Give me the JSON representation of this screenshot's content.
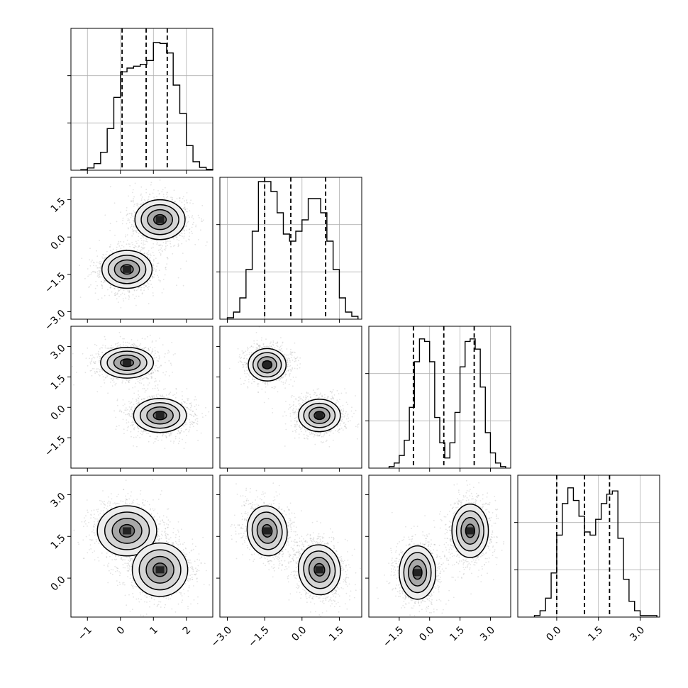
{
  "chart_data": {
    "type": "corner",
    "n_params": 4,
    "grid": true,
    "axes": [
      {
        "range": [
          -1.5,
          2.8
        ],
        "ticks": [
          -1,
          0,
          1,
          2
        ],
        "tick_labels": [
          "−1",
          "0",
          "1",
          "2"
        ]
      },
      {
        "range": [
          -3.3,
          2.4
        ],
        "ticks": [
          -3.0,
          -1.5,
          0.0,
          1.5
        ],
        "tick_labels": [
          "−3.0",
          "−1.5",
          "0.0",
          "1.5"
        ]
      },
      {
        "range": [
          -3.0,
          4.0
        ],
        "ticks": [
          -1.5,
          0.0,
          1.5,
          3.0
        ],
        "tick_labels": [
          "−1.5",
          "0.0",
          "1.5",
          "3.0"
        ]
      },
      {
        "range": [
          -1.4,
          3.7
        ],
        "ticks": [
          0.0,
          1.5,
          3.0
        ],
        "tick_labels": [
          "0.0",
          "1.5",
          "3.0"
        ]
      }
    ],
    "histograms": [
      {
        "param": 0,
        "edges": [
          -1.2,
          -1.0,
          -0.8,
          -0.6,
          -0.4,
          -0.2,
          0.0,
          0.2,
          0.4,
          0.6,
          0.8,
          1.0,
          1.2,
          1.4,
          1.6,
          1.8,
          2.0,
          2.2,
          2.4,
          2.6,
          2.8
        ],
        "counts": [
          0.3,
          1.2,
          3.5,
          9.5,
          22,
          38.5,
          52,
          54,
          55,
          56,
          58,
          67.5,
          67,
          62,
          45,
          30,
          13,
          4.5,
          1.5,
          0.5
        ],
        "ylim": [
          0,
          75
        ],
        "quantiles": [
          0.05,
          0.78,
          1.42
        ]
      },
      {
        "param": 1,
        "edges": [
          -3.0,
          -2.75,
          -2.5,
          -2.25,
          -2.0,
          -1.75,
          -1.5,
          -1.25,
          -1.0,
          -0.75,
          -0.5,
          -0.25,
          0.0,
          0.25,
          0.5,
          0.75,
          1.0,
          1.25,
          1.5,
          1.75,
          2.0,
          2.25
        ],
        "counts": [
          1,
          5,
          15,
          35,
          62,
          97,
          97,
          90,
          75,
          60,
          55,
          62,
          70,
          85,
          85,
          75,
          55,
          35,
          15,
          5,
          2
        ],
        "ylim": [
          0,
          100
        ],
        "quantiles": [
          -1.5,
          -0.45,
          0.95
        ]
      },
      {
        "param": 2,
        "edges": [
          -2.0,
          -1.75,
          -1.5,
          -1.25,
          -1.0,
          -0.75,
          -0.5,
          -0.25,
          0.0,
          0.25,
          0.5,
          0.75,
          1.0,
          1.25,
          1.5,
          1.75,
          2.0,
          2.25,
          2.5,
          2.75,
          3.0,
          3.25,
          3.5,
          3.75
        ],
        "counts": [
          0.3,
          1,
          2.5,
          5.5,
          12,
          21,
          25.5,
          25,
          21,
          10,
          5,
          2,
          5,
          11,
          20,
          25,
          25.5,
          23.5,
          16,
          7,
          3,
          1,
          0.3
        ],
        "ylim": [
          0,
          28
        ],
        "quantiles": [
          -0.8,
          0.7,
          2.2
        ]
      },
      {
        "param": 3,
        "edges": [
          -0.8,
          -0.6,
          -0.4,
          -0.2,
          0.0,
          0.2,
          0.4,
          0.6,
          0.8,
          1.0,
          1.2,
          1.4,
          1.6,
          1.8,
          2.0,
          2.2,
          2.4,
          2.6,
          2.8,
          3.0,
          3.2,
          3.4,
          3.6
        ],
        "counts": [
          0.5,
          2,
          6,
          14,
          26,
          36,
          41,
          37,
          32,
          27,
          26,
          31,
          36,
          39,
          40,
          25,
          12,
          5,
          2,
          0.5,
          0.5,
          0.5
        ],
        "ylim": [
          0,
          45
        ],
        "quantiles": [
          0.0,
          1.0,
          1.9
        ]
      }
    ],
    "pairs": [
      {
        "x": 0,
        "y": 1,
        "modes": [
          {
            "cx": 1.2,
            "cy": 0.7,
            "sx": 0.38,
            "sy": 0.4,
            "rho": 0
          },
          {
            "cx": 0.2,
            "cy": -1.3,
            "sx": 0.38,
            "sy": 0.38,
            "rho": 0
          }
        ]
      },
      {
        "x": 0,
        "y": 2,
        "modes": [
          {
            "cx": 0.2,
            "cy": 2.2,
            "sx": 0.4,
            "sy": 0.38,
            "rho": 0
          },
          {
            "cx": 1.2,
            "cy": -0.4,
            "sx": 0.4,
            "sy": 0.42,
            "rho": 0
          }
        ]
      },
      {
        "x": 0,
        "y": 3,
        "modes": [
          {
            "cx": 0.2,
            "cy": 1.7,
            "sx": 0.45,
            "sy": 0.45,
            "rho": 0
          },
          {
            "cx": 1.2,
            "cy": 0.3,
            "sx": 0.42,
            "sy": 0.48,
            "rho": 0
          }
        ]
      },
      {
        "x": 1,
        "y": 2,
        "modes": [
          {
            "cx": -1.4,
            "cy": 2.1,
            "sx": 0.38,
            "sy": 0.4,
            "rho": 0
          },
          {
            "cx": 0.7,
            "cy": -0.4,
            "sx": 0.42,
            "sy": 0.4,
            "rho": 0
          }
        ]
      },
      {
        "x": 1,
        "y": 3,
        "modes": [
          {
            "cx": -1.4,
            "cy": 1.7,
            "sx": 0.4,
            "sy": 0.45,
            "rho": -0.2
          },
          {
            "cx": 0.7,
            "cy": 0.3,
            "sx": 0.42,
            "sy": 0.45,
            "rho": -0.2
          }
        ]
      },
      {
        "x": 2,
        "y": 3,
        "modes": [
          {
            "cx": -0.6,
            "cy": 0.2,
            "sx": 0.45,
            "sy": 0.48,
            "rho": 0
          },
          {
            "cx": 2.0,
            "cy": 1.7,
            "sx": 0.45,
            "sy": 0.48,
            "rho": 0
          }
        ]
      }
    ],
    "contour_levels_sigma": [
      0.5,
      1.0,
      1.5,
      2.0
    ],
    "title": "",
    "xlabel": "",
    "ylabel": ""
  },
  "colors": {
    "points": "#9a9a9a",
    "lines": "#000000",
    "grid": "#b0b0b0",
    "background": "#ffffff"
  }
}
